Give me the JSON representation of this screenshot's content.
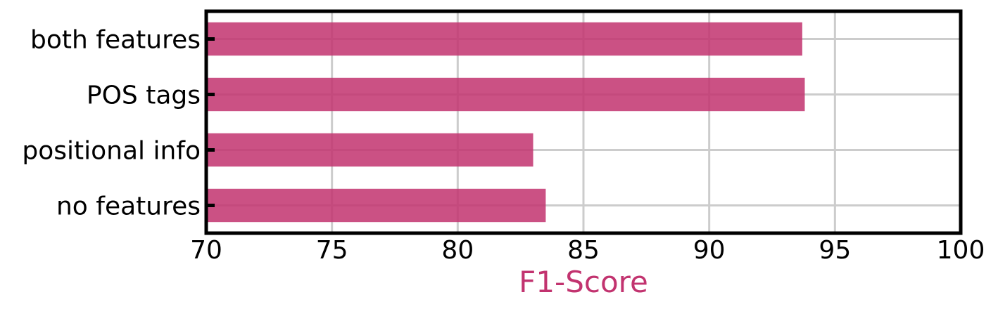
{
  "chart_data": {
    "type": "bar",
    "orientation": "horizontal",
    "categories": [
      "both features",
      "POS tags",
      "positional info",
      "no features"
    ],
    "values": [
      93.7,
      93.8,
      83.0,
      83.5
    ],
    "xlabel": "F1-Score",
    "ylabel": "",
    "xlim": [
      70,
      100
    ],
    "xticks": [
      "70",
      "75",
      "80",
      "85",
      "90",
      "95",
      "100"
    ],
    "grid": true,
    "bar_color": "#c2336f",
    "xlabel_color": "#c2336f"
  }
}
